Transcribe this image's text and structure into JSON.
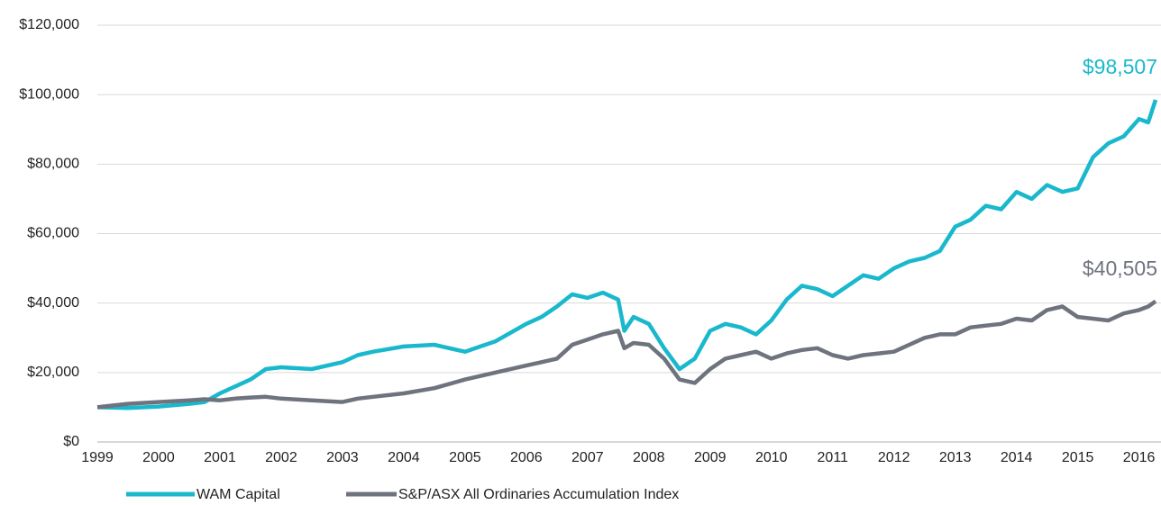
{
  "chart_data": {
    "type": "line",
    "x": [
      1999,
      1999.5,
      2000,
      2000.5,
      2000.75,
      2001,
      2001.25,
      2001.5,
      2001.75,
      2002,
      2002.5,
      2003,
      2003.25,
      2003.5,
      2004,
      2004.5,
      2005,
      2005.25,
      2005.5,
      2006,
      2006.25,
      2006.5,
      2006.75,
      2007,
      2007.25,
      2007.5,
      2007.6,
      2007.75,
      2008,
      2008.25,
      2008.5,
      2008.75,
      2009,
      2009.25,
      2009.5,
      2009.75,
      2010,
      2010.25,
      2010.5,
      2010.75,
      2011,
      2011.25,
      2011.5,
      2011.75,
      2012,
      2012.25,
      2012.5,
      2012.75,
      2013,
      2013.25,
      2013.5,
      2013.75,
      2014,
      2014.25,
      2014.5,
      2014.75,
      2015,
      2015.25,
      2015.5,
      2015.75,
      2016,
      2016.15,
      2016.27
    ],
    "series": [
      {
        "name": "WAM Capital",
        "color": "#1ab8cc",
        "end_label": "$98,507",
        "values": [
          10000,
          9800,
          10200,
          11000,
          11500,
          14000,
          16000,
          18000,
          21000,
          21500,
          21000,
          23000,
          25000,
          26000,
          27500,
          28000,
          26000,
          27500,
          29000,
          34000,
          36000,
          39000,
          42500,
          41500,
          43000,
          41000,
          32000,
          36000,
          34000,
          27000,
          21000,
          24000,
          32000,
          34000,
          33000,
          31000,
          35000,
          41000,
          45000,
          44000,
          42000,
          45000,
          48000,
          47000,
          50000,
          52000,
          53000,
          55000,
          62000,
          64000,
          68000,
          67000,
          72000,
          70000,
          74000,
          72000,
          73000,
          82000,
          86000,
          88000,
          93000,
          92000,
          98507
        ]
      },
      {
        "name": "S&P/ASX All Ordinaries Accumulation Index",
        "color": "#6e737d",
        "end_label": "$40,505",
        "values": [
          10000,
          11000,
          11500,
          12000,
          12300,
          12000,
          12500,
          12800,
          13000,
          12500,
          12000,
          11500,
          12500,
          13000,
          14000,
          15500,
          18000,
          19000,
          20000,
          22000,
          23000,
          24000,
          28000,
          29500,
          31000,
          32000,
          27000,
          28500,
          28000,
          24000,
          18000,
          17000,
          21000,
          24000,
          25000,
          26000,
          24000,
          25500,
          26500,
          27000,
          25000,
          24000,
          25000,
          25500,
          26000,
          28000,
          30000,
          31000,
          31000,
          33000,
          33500,
          34000,
          35500,
          35000,
          38000,
          39000,
          36000,
          35500,
          35000,
          37000,
          38000,
          39000,
          40505
        ]
      }
    ],
    "xlim": [
      1999,
      2016.3
    ],
    "xticks": [
      1999,
      2000,
      2001,
      2002,
      2003,
      2004,
      2005,
      2006,
      2007,
      2008,
      2009,
      2010,
      2011,
      2012,
      2013,
      2014,
      2015,
      2016
    ],
    "ylim": [
      0,
      120000
    ],
    "yticks": [
      {
        "value": 0,
        "label": "$0"
      },
      {
        "value": 20000,
        "label": "$20,000"
      },
      {
        "value": 40000,
        "label": "$40,000"
      },
      {
        "value": 60000,
        "label": "$60,000"
      },
      {
        "value": 80000,
        "label": "$80,000"
      },
      {
        "value": 100000,
        "label": "$100,000"
      },
      {
        "value": 120000,
        "label": "$120,000"
      }
    ],
    "grid": true,
    "legend": "bottom"
  }
}
